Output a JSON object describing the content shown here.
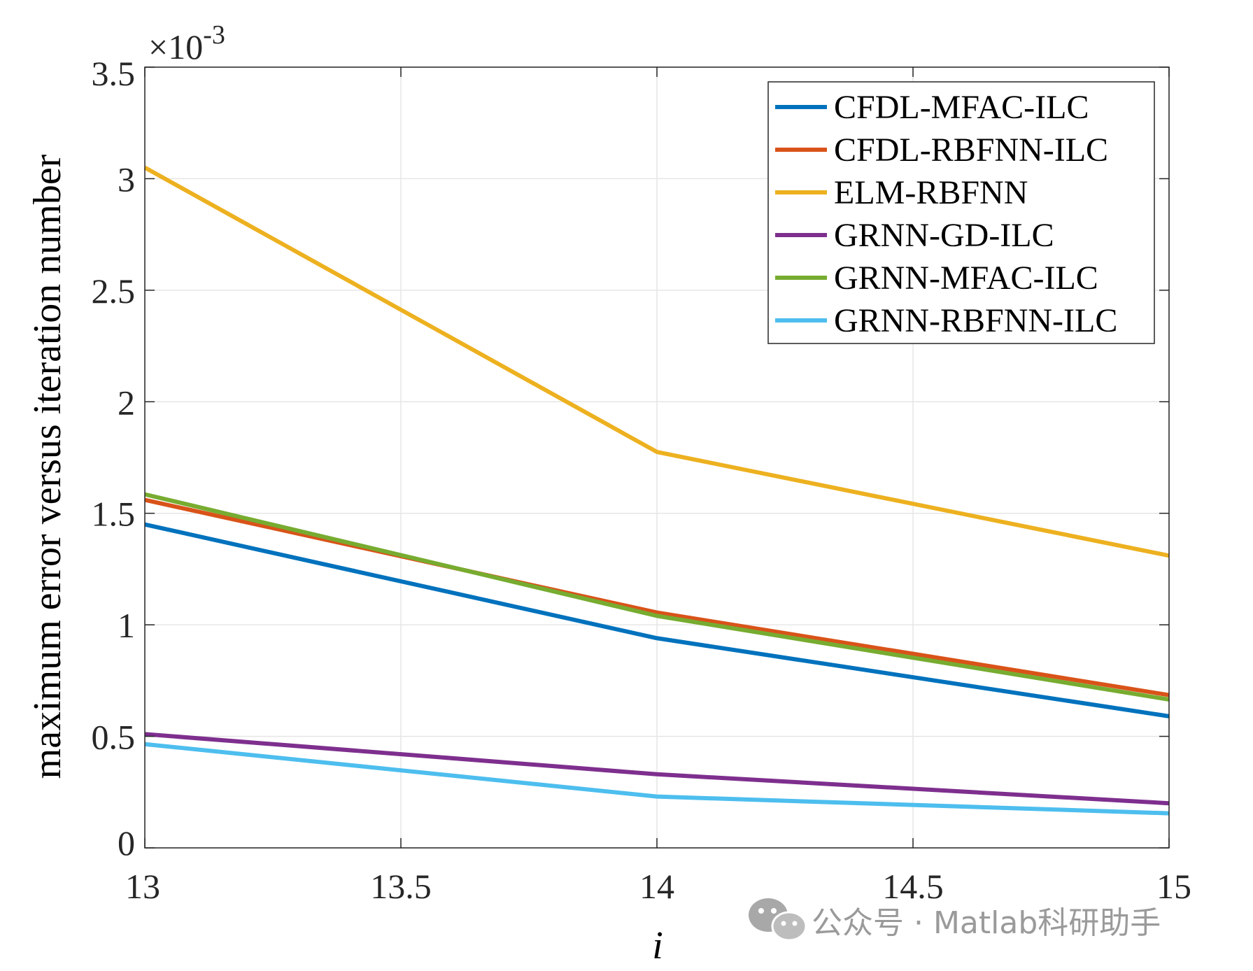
{
  "chart_data": {
    "type": "line",
    "title": "",
    "xlabel": "i",
    "ylabel": "maximum error versus iteration number",
    "y_exponent": "×10^-3",
    "x": [
      13,
      14,
      15
    ],
    "xlim": [
      13,
      15
    ],
    "ylim": [
      0,
      3.5
    ],
    "xticks": [
      "13",
      "13.5",
      "14",
      "14.5",
      "15"
    ],
    "yticks": [
      "0",
      "0.5",
      "1",
      "1.5",
      "2",
      "2.5",
      "3",
      "3.5"
    ],
    "grid": true,
    "legend_position": "top-right",
    "series": [
      {
        "name": "CFDL-MFAC-ILC",
        "color": "#0072BD",
        "values": [
          1.45,
          0.94,
          0.59
        ]
      },
      {
        "name": "CFDL-RBFNN-ILC",
        "color": "#D95319",
        "values": [
          1.56,
          1.055,
          0.685
        ]
      },
      {
        "name": "ELM-RBFNN",
        "color": "#EDB120",
        "values": [
          3.05,
          1.775,
          1.31
        ]
      },
      {
        "name": "GRNN-GD-ILC",
        "color": "#7E2F8E",
        "values": [
          0.51,
          0.33,
          0.2
        ]
      },
      {
        "name": "GRNN-MFAC-ILC",
        "color": "#77AC30",
        "values": [
          1.585,
          1.04,
          0.665
        ]
      },
      {
        "name": "GRNN-RBFNN-ILC",
        "color": "#4DBEEE",
        "values": [
          0.465,
          0.23,
          0.155
        ]
      }
    ]
  },
  "watermark": {
    "text": "公众号 · Matlab科研助手",
    "icon": "wechat-icon"
  }
}
